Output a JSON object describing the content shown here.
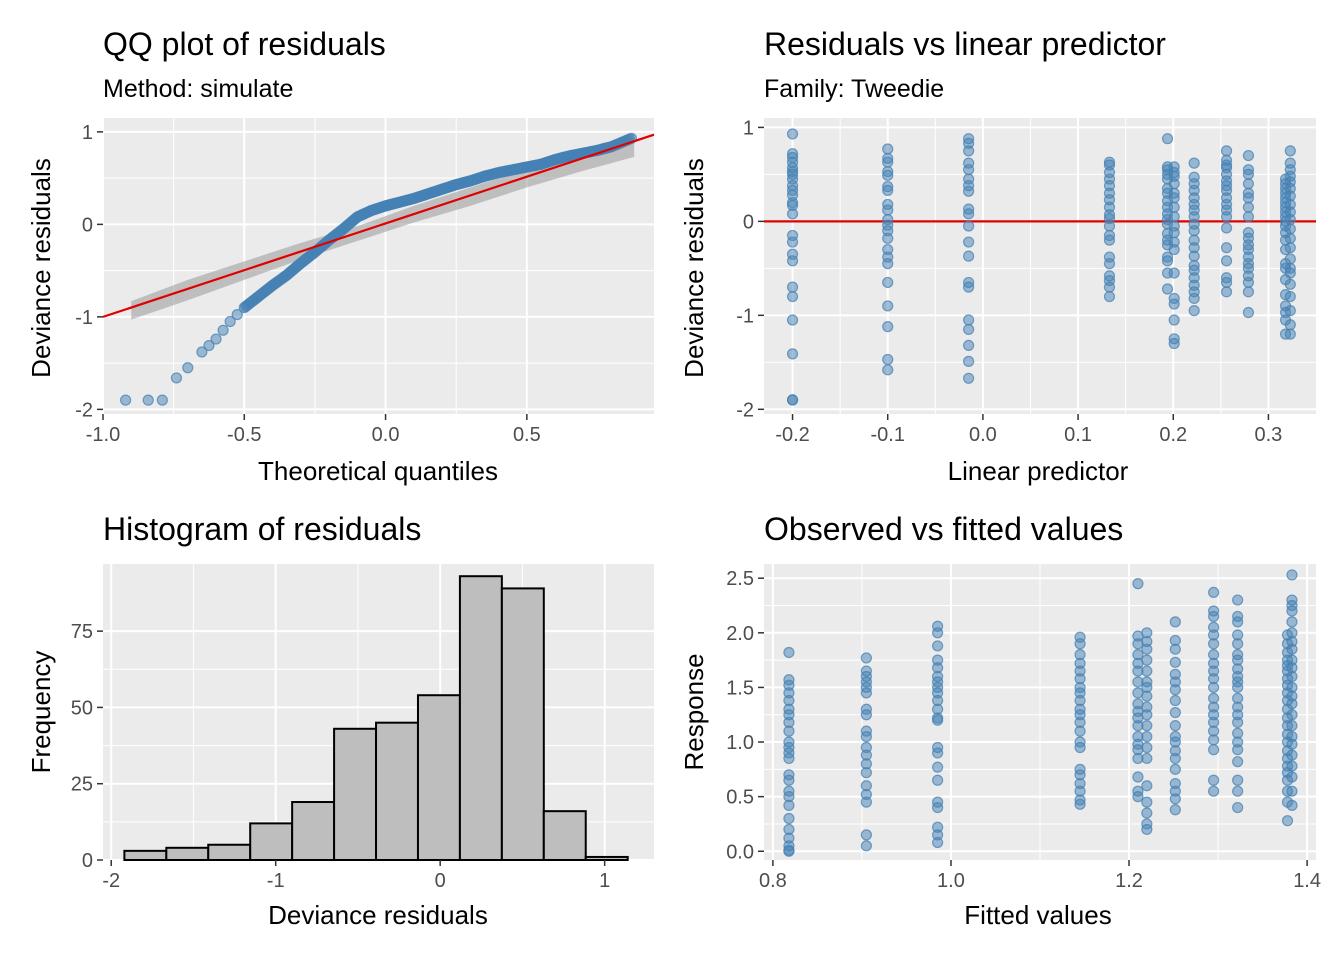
{
  "colors": {
    "panel_bg": "#ebebeb",
    "grid": "#ffffff",
    "point_fill": "#4682b4",
    "point_stroke": "#4682b4",
    "ref_line": "#e00000",
    "band": "#999999",
    "hist_fill": "#bebebe",
    "hist_stroke": "#000000"
  },
  "chart_data": [
    {
      "type": "scatter",
      "title": "QQ plot of residuals",
      "subtitle": "Method: simulate",
      "xlabel": "Theoretical quantiles",
      "ylabel": "Deviance residuals",
      "xlim": [
        -1.0,
        0.95
      ],
      "ylim": [
        -2.05,
        1.15
      ],
      "xticks": [
        -1.0,
        -0.5,
        0.0,
        0.5
      ],
      "xtick_labels": [
        "-1.0",
        "-0.5",
        "0.0",
        "0.5"
      ],
      "yticks": [
        -2,
        -1,
        0,
        1
      ],
      "ytick_labels": [
        "-2",
        "-1",
        "0",
        "1"
      ],
      "reference_line": [
        [
          -1.0,
          -1.0
        ],
        [
          0.95,
          0.97
        ]
      ],
      "band_upper": [
        [
          -0.9,
          -0.83
        ],
        [
          -0.7,
          -0.6
        ],
        [
          -0.5,
          -0.4
        ],
        [
          -0.3,
          -0.2
        ],
        [
          -0.1,
          -0.02
        ],
        [
          0.1,
          0.2
        ],
        [
          0.3,
          0.4
        ],
        [
          0.5,
          0.6
        ],
        [
          0.7,
          0.79
        ],
        [
          0.88,
          0.98
        ]
      ],
      "band_lower": [
        [
          -0.9,
          -1.03
        ],
        [
          -0.7,
          -0.82
        ],
        [
          -0.5,
          -0.6
        ],
        [
          -0.3,
          -0.38
        ],
        [
          -0.1,
          -0.18
        ],
        [
          0.1,
          0.02
        ],
        [
          0.3,
          0.2
        ],
        [
          0.5,
          0.4
        ],
        [
          0.7,
          0.58
        ],
        [
          0.88,
          0.73
        ]
      ],
      "qq_curve": [
        [
          -0.92,
          -1.9
        ],
        [
          -0.84,
          -1.9
        ],
        [
          -0.79,
          -1.9
        ],
        [
          -0.74,
          -1.66
        ],
        [
          -0.7,
          -1.55
        ],
        [
          -0.65,
          -1.38
        ],
        [
          -0.6,
          -1.24
        ],
        [
          -0.55,
          -1.05
        ],
        [
          -0.5,
          -0.9
        ],
        [
          -0.45,
          -0.78
        ],
        [
          -0.4,
          -0.66
        ],
        [
          -0.35,
          -0.55
        ],
        [
          -0.3,
          -0.42
        ],
        [
          -0.25,
          -0.3
        ],
        [
          -0.2,
          -0.17
        ],
        [
          -0.15,
          -0.05
        ],
        [
          -0.1,
          0.08
        ],
        [
          -0.05,
          0.15
        ],
        [
          0.0,
          0.2
        ],
        [
          0.05,
          0.24
        ],
        [
          0.1,
          0.28
        ],
        [
          0.15,
          0.33
        ],
        [
          0.2,
          0.38
        ],
        [
          0.25,
          0.43
        ],
        [
          0.3,
          0.47
        ],
        [
          0.35,
          0.52
        ],
        [
          0.4,
          0.56
        ],
        [
          0.45,
          0.59
        ],
        [
          0.5,
          0.62
        ],
        [
          0.55,
          0.65
        ],
        [
          0.6,
          0.7
        ],
        [
          0.65,
          0.74
        ],
        [
          0.7,
          0.77
        ],
        [
          0.75,
          0.8
        ],
        [
          0.8,
          0.84
        ],
        [
          0.87,
          0.93
        ]
      ],
      "n_points": 335
    },
    {
      "type": "scatter",
      "title": "Residuals vs linear predictor",
      "subtitle": "Family: Tweedie",
      "xlabel": "Linear predictor",
      "ylabel": "Deviance residuals",
      "xlim": [
        -0.23,
        0.35
      ],
      "ylim": [
        -2.05,
        1.1
      ],
      "xticks": [
        -0.2,
        -0.1,
        0.0,
        0.1,
        0.2,
        0.3
      ],
      "xtick_labels": [
        "-0.2",
        "-0.1",
        "0.0",
        "0.1",
        "0.2",
        "0.3"
      ],
      "yticks": [
        -2,
        -1,
        0,
        1
      ],
      "ytick_labels": [
        "-2",
        "-1",
        "0",
        "1"
      ],
      "hline": 0,
      "columns": [
        {
          "x": -0.2,
          "ys": [
            0.93,
            0.72,
            0.68,
            0.63,
            0.57,
            0.53,
            0.5,
            0.45,
            0.38,
            0.33,
            0.28,
            0.2,
            0.17,
            0.08,
            -0.15,
            -0.22,
            -0.35,
            -0.42,
            -0.7,
            -0.8,
            -1.05,
            -1.41,
            -1.9,
            -1.9
          ]
        },
        {
          "x": -0.1,
          "ys": [
            0.77,
            0.67,
            0.63,
            0.53,
            0.49,
            0.37,
            0.33,
            0.18,
            0.12,
            0.02,
            -0.04,
            -0.1,
            -0.18,
            -0.3,
            -0.38,
            -0.45,
            -0.65,
            -0.9,
            -1.12,
            -1.47,
            -1.58
          ]
        },
        {
          "x": -0.015,
          "ys": [
            0.88,
            0.83,
            0.75,
            0.62,
            0.55,
            0.45,
            0.38,
            0.32,
            0.13,
            0.08,
            -0.05,
            -0.22,
            -0.37,
            -0.65,
            -0.7,
            -1.05,
            -1.15,
            -1.32,
            -1.49,
            -1.67
          ]
        },
        {
          "x": 0.133,
          "ys": [
            0.63,
            0.6,
            0.52,
            0.45,
            0.38,
            0.3,
            0.23,
            0.15,
            0.07,
            0.03,
            -0.05,
            -0.15,
            -0.2,
            -0.38,
            -0.45,
            -0.58,
            -0.63,
            -0.7,
            -0.8
          ]
        },
        {
          "x": 0.194,
          "ys": [
            0.88,
            0.58,
            0.55,
            0.5,
            0.45,
            0.35,
            0.3,
            0.22,
            0.15,
            0.08,
            0.02,
            -0.03,
            -0.13,
            -0.2,
            -0.25,
            -0.38,
            -0.42,
            -0.55,
            -0.72
          ]
        },
        {
          "x": 0.201,
          "ys": [
            0.58,
            0.52,
            0.48,
            0.4,
            0.3,
            0.25,
            0.15,
            0.05,
            -0.05,
            -0.12,
            -0.22,
            -0.3,
            -0.55,
            -0.82,
            -0.88,
            -1.05,
            -1.25,
            -1.3
          ]
        },
        {
          "x": 0.222,
          "ys": [
            0.62,
            0.47,
            0.4,
            0.33,
            0.25,
            0.18,
            0.12,
            0.05,
            -0.03,
            -0.1,
            -0.2,
            -0.28,
            -0.37,
            -0.47,
            -0.52,
            -0.6,
            -0.68,
            -0.75,
            -0.82,
            -0.95
          ]
        },
        {
          "x": 0.256,
          "ys": [
            0.75,
            0.65,
            0.6,
            0.57,
            0.5,
            0.43,
            0.38,
            0.33,
            0.25,
            0.18,
            0.12,
            0.05,
            -0.07,
            -0.28,
            -0.42,
            -0.6,
            -0.65,
            -0.75
          ]
        },
        {
          "x": 0.279,
          "ys": [
            0.7,
            0.55,
            0.5,
            0.4,
            0.3,
            0.25,
            0.15,
            0.05,
            -0.12,
            -0.18,
            -0.25,
            -0.3,
            -0.38,
            -0.45,
            -0.5,
            -0.58,
            -0.65,
            -0.75,
            -0.97
          ]
        },
        {
          "x": 0.318,
          "ys": [
            0.45,
            0.4,
            0.35,
            0.3,
            0.25,
            0.2,
            0.15,
            0.1,
            0.05,
            0.0,
            -0.05,
            -0.12,
            -0.2,
            -0.3,
            -0.45,
            -0.5,
            -0.62,
            -0.78,
            -0.9,
            -0.97,
            -1.05,
            -1.2
          ]
        },
        {
          "x": 0.323,
          "ys": [
            0.75,
            0.62,
            0.55,
            0.48,
            0.42,
            0.35,
            0.27,
            0.18,
            0.1,
            0.02,
            -0.08,
            -0.18,
            -0.28,
            -0.4,
            -0.5,
            -0.55,
            -0.67,
            -0.8,
            -0.95,
            -1.1,
            -1.2
          ]
        }
      ]
    },
    {
      "type": "bar",
      "title": "Histogram of residuals",
      "xlabel": "Deviance residuals",
      "ylabel": "Frequency",
      "xlim": [
        -2.05,
        1.3
      ],
      "ylim": [
        0,
        97
      ],
      "xticks": [
        -2,
        -1,
        0,
        1
      ],
      "xtick_labels": [
        "-2",
        "-1",
        "0",
        "1"
      ],
      "yticks": [
        0,
        25,
        50,
        75
      ],
      "ytick_labels": [
        "0",
        "25",
        "50",
        "75"
      ],
      "bin_edges": [
        -1.92,
        -1.665,
        -1.41,
        -1.155,
        -0.9,
        -0.645,
        -0.39,
        -0.135,
        0.12,
        0.375,
        0.63,
        0.885,
        1.14
      ],
      "counts": [
        3,
        4,
        5,
        12,
        19,
        43,
        45,
        54,
        93,
        89,
        16,
        1
      ]
    },
    {
      "type": "scatter",
      "title": "Observed vs fitted values",
      "xlabel": "Fitted values",
      "ylabel": "Response",
      "xlim": [
        0.79,
        1.41
      ],
      "ylim": [
        -0.08,
        2.63
      ],
      "xticks": [
        0.8,
        1.0,
        1.2,
        1.4
      ],
      "xtick_labels": [
        "0.8",
        "1.0",
        "1.2",
        "1.4"
      ],
      "yticks": [
        0.0,
        0.5,
        1.0,
        1.5,
        2.0,
        2.5
      ],
      "ytick_labels": [
        "0.0",
        "0.5",
        "1.0",
        "1.5",
        "2.0",
        "2.5"
      ],
      "columns": [
        {
          "x": 0.818,
          "ys": [
            1.82,
            1.57,
            1.52,
            1.45,
            1.38,
            1.3,
            1.25,
            1.18,
            1.1,
            1.0,
            0.95,
            0.9,
            0.85,
            0.7,
            0.65,
            0.55,
            0.5,
            0.42,
            0.3,
            0.2,
            0.12,
            0.05,
            0.01,
            0.0
          ]
        },
        {
          "x": 0.905,
          "ys": [
            1.77,
            1.65,
            1.6,
            1.55,
            1.5,
            1.45,
            1.3,
            1.25,
            1.1,
            1.05,
            0.95,
            0.88,
            0.8,
            0.72,
            0.6,
            0.52,
            0.45,
            0.15,
            0.05
          ]
        },
        {
          "x": 0.985,
          "ys": [
            2.06,
            2.0,
            1.88,
            1.75,
            1.68,
            1.6,
            1.55,
            1.5,
            1.45,
            1.38,
            1.3,
            1.22,
            1.2,
            0.95,
            0.9,
            0.77,
            0.65,
            0.45,
            0.4,
            0.22,
            0.15,
            0.08
          ]
        },
        {
          "x": 1.145,
          "ys": [
            1.96,
            1.9,
            1.8,
            1.72,
            1.65,
            1.58,
            1.5,
            1.45,
            1.38,
            1.3,
            1.25,
            1.18,
            1.1,
            1.0,
            0.95,
            0.75,
            0.7,
            0.62,
            0.55,
            0.47,
            0.43
          ]
        },
        {
          "x": 1.21,
          "ys": [
            2.45,
            1.97,
            1.9,
            1.8,
            1.72,
            1.65,
            1.55,
            1.45,
            1.35,
            1.28,
            1.22,
            1.15,
            1.05,
            0.98,
            0.93,
            0.85,
            0.68,
            0.55,
            0.5
          ]
        },
        {
          "x": 1.22,
          "ys": [
            2.0,
            1.92,
            1.85,
            1.75,
            1.65,
            1.55,
            1.5,
            1.42,
            1.32,
            1.25,
            1.15,
            1.05,
            0.95,
            0.85,
            0.6,
            0.45,
            0.35,
            0.25,
            0.2
          ]
        },
        {
          "x": 1.252,
          "ys": [
            2.1,
            1.93,
            1.85,
            1.73,
            1.62,
            1.55,
            1.48,
            1.38,
            1.27,
            1.15,
            1.05,
            1.0,
            0.92,
            0.85,
            0.75,
            0.62,
            0.55,
            0.48,
            0.38
          ]
        },
        {
          "x": 1.295,
          "ys": [
            2.37,
            2.2,
            2.15,
            2.05,
            1.98,
            1.9,
            1.8,
            1.72,
            1.65,
            1.58,
            1.5,
            1.4,
            1.32,
            1.25,
            1.18,
            1.1,
            1.02,
            0.93,
            0.65,
            0.55
          ]
        },
        {
          "x": 1.322,
          "ys": [
            2.3,
            2.15,
            2.1,
            1.98,
            1.9,
            1.8,
            1.75,
            1.67,
            1.6,
            1.55,
            1.5,
            1.4,
            1.32,
            1.25,
            1.18,
            1.08,
            1.0,
            0.93,
            0.82,
            0.65,
            0.55,
            0.4
          ]
        },
        {
          "x": 1.378,
          "ys": [
            1.98,
            1.9,
            1.82,
            1.75,
            1.7,
            1.65,
            1.58,
            1.52,
            1.45,
            1.38,
            1.3,
            1.22,
            1.15,
            1.07,
            1.0,
            0.92,
            0.85,
            0.78,
            0.72,
            0.65,
            0.55,
            0.45,
            0.28
          ]
        },
        {
          "x": 1.383,
          "ys": [
            2.53,
            2.3,
            2.25,
            2.2,
            2.1,
            2.0,
            1.92,
            1.85,
            1.75,
            1.68,
            1.6,
            1.5,
            1.42,
            1.35,
            1.25,
            1.15,
            1.05,
            0.98,
            0.88,
            0.78,
            0.68,
            0.55,
            0.42
          ]
        }
      ]
    }
  ]
}
